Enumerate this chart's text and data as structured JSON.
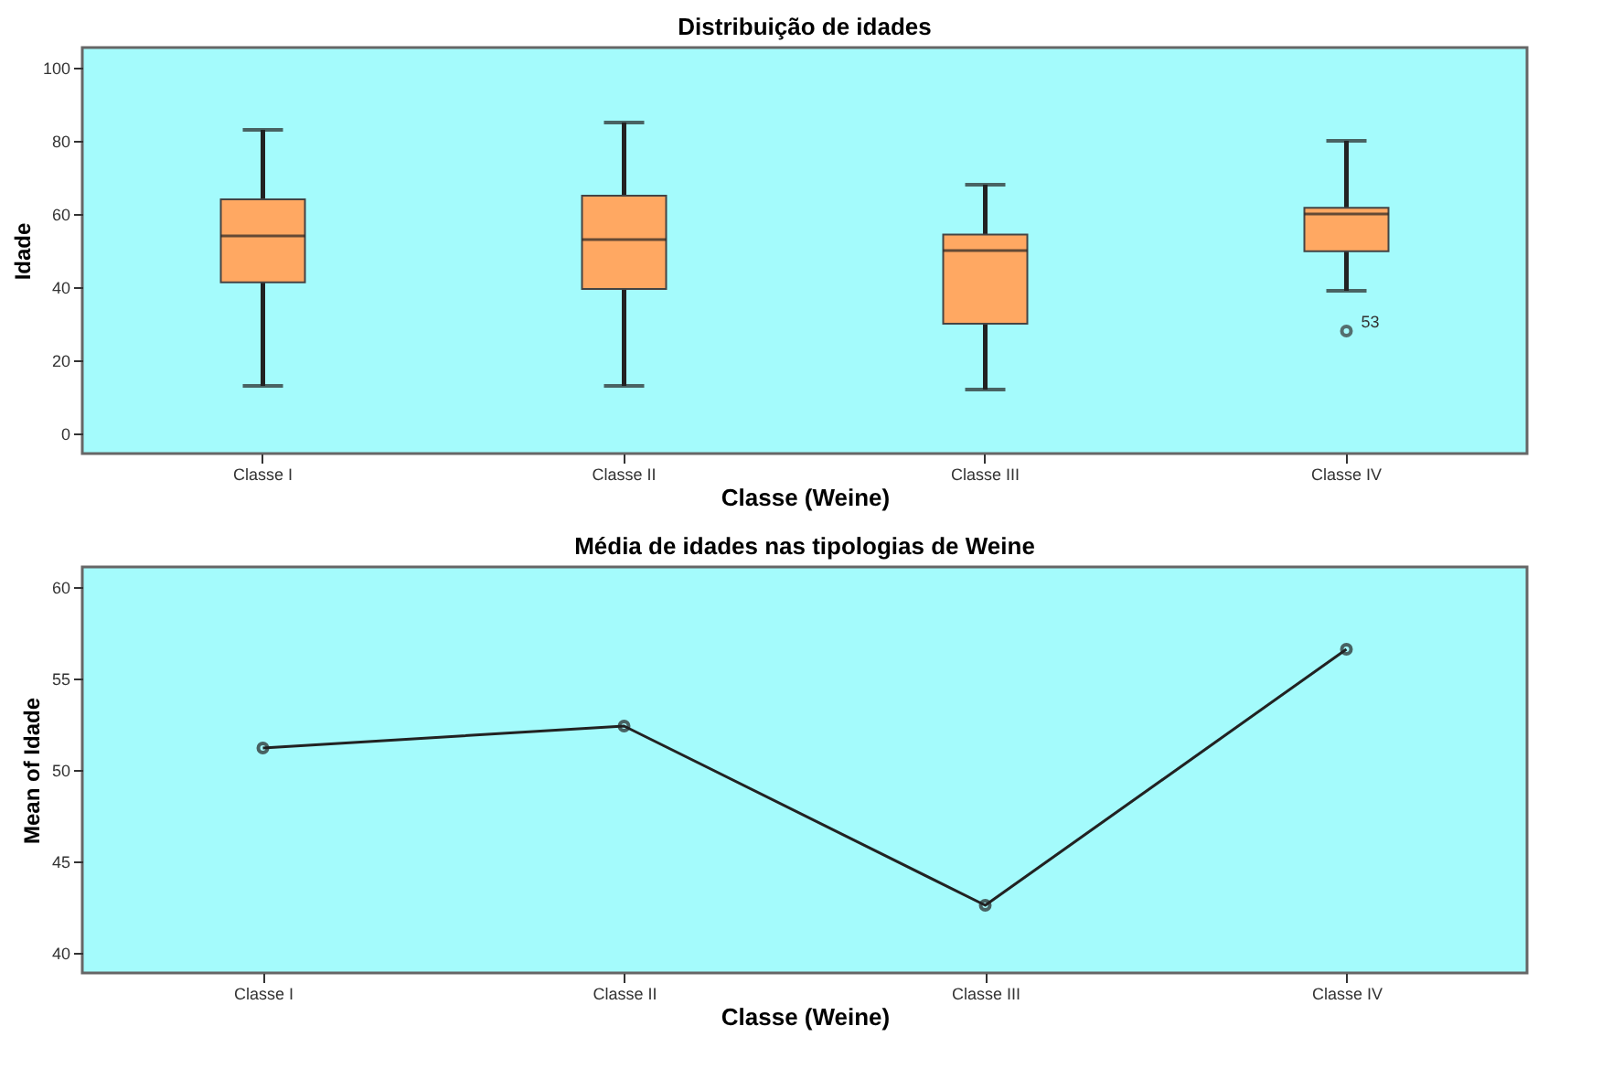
{
  "chart_data": [
    {
      "type": "box",
      "title": "Distribuição de idades",
      "xlabel": "Classe (Weine)",
      "ylabel": "Idade",
      "categories": [
        "Classe I",
        "Classe II",
        "Classe III",
        "Classe IV"
      ],
      "color": "#ffa862",
      "boxes": [
        {
          "low": 13,
          "q1": 41.3,
          "median": 54,
          "q3": 64,
          "high": 83
        },
        {
          "low": 13,
          "q1": 39.5,
          "median": 53,
          "q3": 65,
          "high": 85
        },
        {
          "low": 12,
          "q1": 30,
          "median": 50,
          "q3": 54.4,
          "high": 68
        },
        {
          "low": 39,
          "q1": 49.8,
          "median": 60,
          "q3": 61.7,
          "high": 80,
          "outliers": [
            28
          ]
        }
      ],
      "annotations": [
        "53"
      ],
      "ylim": [
        -5.5,
        105.5
      ],
      "yticks": [
        0,
        20,
        40,
        60,
        80,
        100
      ],
      "grid": false
    },
    {
      "type": "line",
      "title": "Média de idades nas tipologias de Weine",
      "xlabel": "Classe (Weine)",
      "ylabel": "Mean of Idade",
      "categories": [
        "Classe I",
        "Classe II",
        "Classe III",
        "Classe IV"
      ],
      "series": [
        {
          "color": "#222222",
          "values": [
            51.2,
            52.4,
            42.6,
            56.6
          ]
        }
      ],
      "ylim": [
        38.9,
        61.1
      ],
      "yticks": [
        40,
        45,
        50,
        55,
        60
      ],
      "marker": "circle",
      "line_style": "solid",
      "grid": false
    }
  ]
}
